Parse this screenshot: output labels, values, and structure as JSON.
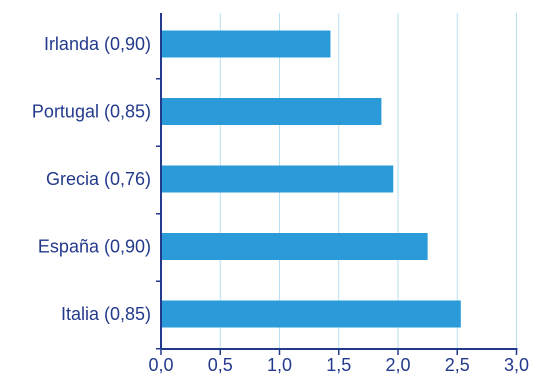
{
  "chart_data": {
    "type": "bar",
    "orientation": "horizontal",
    "categories": [
      "Irlanda (0,90)",
      "Portugal (0,85)",
      "Grecia (0,76)",
      "España (0,90)",
      "Italia (0,85)"
    ],
    "values": [
      1.43,
      1.86,
      1.96,
      2.25,
      2.53
    ],
    "title": "",
    "xlabel": "",
    "ylabel": "",
    "xlim": [
      0,
      3
    ],
    "xticks": [
      0,
      0.5,
      1,
      1.5,
      2,
      2.5,
      3
    ],
    "xtick_labels": [
      "0,0",
      "0,5",
      "1,0",
      "1,5",
      "2,0",
      "2,5",
      "3,0"
    ],
    "grid": "vertical",
    "legend": "none",
    "colors": {
      "bar": "#2a9bd8",
      "axis": "#233a8c",
      "grid": "#b9dff0",
      "text": "#233a8c"
    }
  }
}
